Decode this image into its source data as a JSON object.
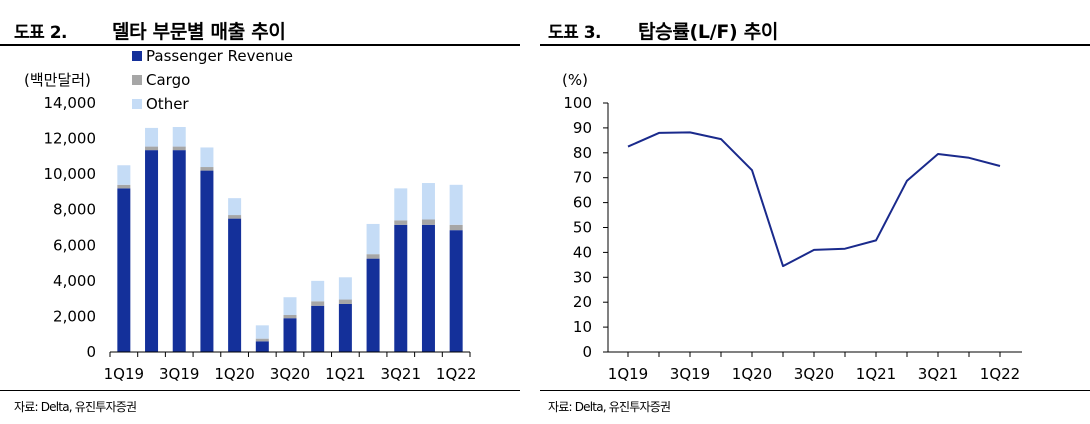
{
  "left": {
    "fig_no": "도표 2.",
    "title": "델타 부문별 매출 추이",
    "source": "자료: Delta, 유진투자증권"
  },
  "right": {
    "fig_no": "도표 3.",
    "title": "탑승률(L/F) 추이",
    "source": "자료: Delta, 유진투자증권"
  },
  "chart_data": [
    {
      "type": "bar",
      "stacked": true,
      "unit_label": "(백만달러)",
      "ylim": [
        0,
        14000
      ],
      "yticks": [
        "0",
        "2,000",
        "4,000",
        "6,000",
        "8,000",
        "10,000",
        "12,000",
        "14,000"
      ],
      "ytick_values": [
        0,
        2000,
        4000,
        6000,
        8000,
        10000,
        12000,
        14000
      ],
      "categories": [
        "1Q19",
        "2Q19",
        "3Q19",
        "4Q19",
        "1Q20",
        "2Q20",
        "3Q20",
        "4Q20",
        "1Q21",
        "2Q21",
        "3Q21",
        "4Q21",
        "1Q22"
      ],
      "xtick_labels": [
        "1Q19",
        "3Q19",
        "1Q20",
        "3Q20",
        "1Q21",
        "3Q21",
        "1Q22"
      ],
      "xtick_indices": [
        0,
        2,
        4,
        6,
        8,
        10,
        12
      ],
      "legend_position": "top-left",
      "grid": false,
      "series": [
        {
          "name": "Passenger Revenue",
          "color": "#14309a",
          "values": [
            9200,
            11350,
            11350,
            10200,
            7500,
            600,
            1900,
            2600,
            2700,
            5250,
            7150,
            7150,
            6850
          ]
        },
        {
          "name": "Cargo",
          "color": "#a6a6a6",
          "values": [
            200,
            200,
            200,
            200,
            200,
            150,
            180,
            250,
            250,
            250,
            250,
            300,
            300
          ]
        },
        {
          "name": "Other",
          "color": "#c5dcf6",
          "values": [
            1100,
            1050,
            1100,
            1100,
            950,
            750,
            1000,
            1150,
            1250,
            1700,
            1800,
            2050,
            2250
          ]
        }
      ]
    },
    {
      "type": "line",
      "unit_label": "(%)",
      "ylim": [
        0,
        100
      ],
      "yticks": [
        "0",
        "10",
        "20",
        "30",
        "40",
        "50",
        "60",
        "70",
        "80",
        "90",
        "100"
      ],
      "ytick_values": [
        0,
        10,
        20,
        30,
        40,
        50,
        60,
        70,
        80,
        90,
        100
      ],
      "categories": [
        "1Q19",
        "2Q19",
        "3Q19",
        "4Q19",
        "1Q20",
        "2Q20",
        "3Q20",
        "4Q20",
        "1Q21",
        "2Q21",
        "3Q21",
        "4Q21",
        "1Q22"
      ],
      "xtick_labels": [
        "1Q19",
        "3Q19",
        "1Q20",
        "3Q20",
        "1Q21",
        "3Q21",
        "1Q22"
      ],
      "xtick_indices": [
        0,
        2,
        4,
        6,
        8,
        10,
        12
      ],
      "grid": false,
      "series": [
        {
          "color": "#1a2a8c",
          "values": [
            82.5,
            88,
            88.2,
            85.5,
            73,
            34.5,
            41,
            41.5,
            44.8,
            68.8,
            79.5,
            78,
            74.7
          ]
        }
      ]
    }
  ]
}
